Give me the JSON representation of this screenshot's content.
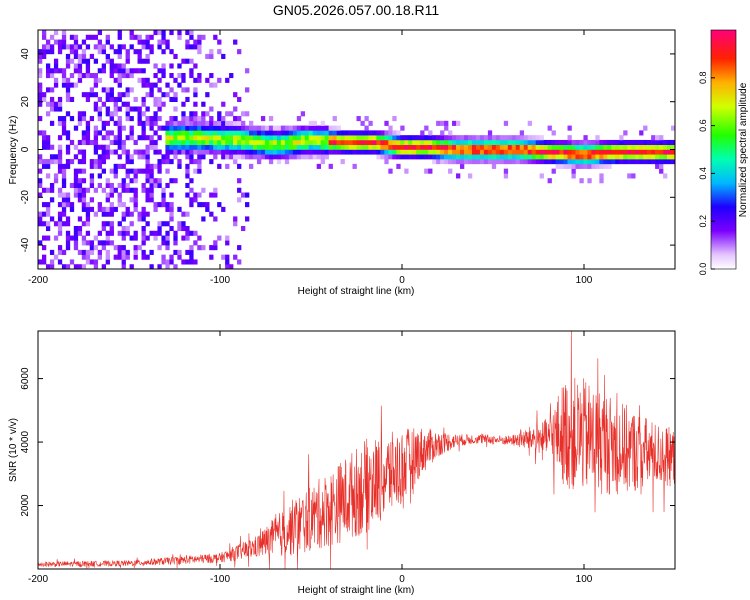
{
  "title": "GN05.2026.057.00.18.R11",
  "chart_data": [
    {
      "type": "heatmap",
      "name": "spectrogram",
      "xlabel": "Height of straight line (km)",
      "ylabel": "Frequency (Hz)",
      "xlim": [
        -200,
        150
      ],
      "ylim": [
        -50,
        50
      ],
      "xticks": [
        "-200",
        "-100",
        "0",
        "100"
      ],
      "xtick_values": [
        -200,
        -100,
        0,
        100
      ],
      "yticks": [
        "-40",
        "-20",
        "0",
        "20",
        "40"
      ],
      "ytick_values": [
        -40,
        -20,
        0,
        20,
        40
      ],
      "centerline": {
        "x": [
          -130,
          -110,
          -90,
          -70,
          -50,
          -30,
          -15,
          0,
          15,
          30,
          50,
          65,
          80,
          100,
          120,
          150
        ],
        "freq": [
          5,
          5,
          4,
          2,
          4,
          3,
          3,
          1,
          1,
          0,
          0,
          0,
          -1,
          -2,
          -1,
          -1
        ]
      },
      "noise_region": [
        -200,
        -80
      ],
      "colorbar": {
        "label": "Normalized spectral amplitude",
        "range": [
          0.0,
          1.0
        ],
        "ticks": [
          "0.0",
          "0.2",
          "0.4",
          "0.6",
          "0.8"
        ],
        "tick_values": [
          0.0,
          0.2,
          0.4,
          0.6,
          0.8
        ]
      }
    },
    {
      "type": "line",
      "name": "snr",
      "xlabel": "Height of straight line (km)",
      "ylabel": "SNR (10 * v/v)",
      "xlim": [
        -200,
        150
      ],
      "ylim": [
        0,
        7500
      ],
      "color": "#e8302a",
      "xticks": [
        "-200",
        "-100",
        "0",
        "100"
      ],
      "xtick_values": [
        -200,
        -100,
        0,
        100
      ],
      "yticks": [
        "2000",
        "4000",
        "6000"
      ],
      "ytick_values": [
        2000,
        4000,
        6000
      ],
      "envelope": {
        "x": [
          -200,
          -150,
          -100,
          -80,
          -60,
          -40,
          -20,
          0,
          10,
          20,
          30,
          40,
          60,
          80,
          90,
          100,
          120,
          140,
          150
        ],
        "mean": [
          150,
          180,
          350,
          700,
          1300,
          1900,
          2600,
          3200,
          3700,
          3950,
          4050,
          4100,
          4050,
          4150,
          4300,
          4200,
          3800,
          3600,
          3500
        ],
        "spread": [
          80,
          90,
          150,
          350,
          900,
          1200,
          1500,
          1200,
          800,
          400,
          200,
          150,
          150,
          600,
          1800,
          1800,
          1500,
          1000,
          900
        ]
      }
    }
  ]
}
